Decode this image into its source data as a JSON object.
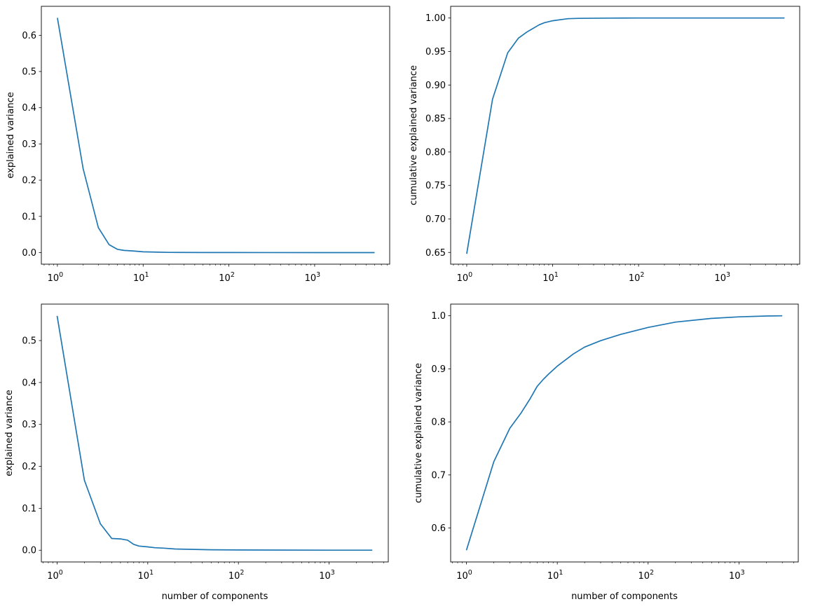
{
  "chart_data": [
    {
      "type": "line",
      "title": "",
      "xlabel": "",
      "ylabel": "explained variance",
      "xscale": "log",
      "xlim": [
        0.65,
        7500
      ],
      "ylim": [
        -0.032,
        0.68
      ],
      "xticks": [
        {
          "base": "10",
          "exp": "0"
        },
        {
          "base": "10",
          "exp": "1"
        },
        {
          "base": "10",
          "exp": "2"
        },
        {
          "base": "10",
          "exp": "3"
        }
      ],
      "yticks": [
        "0.0",
        "0.1",
        "0.2",
        "0.3",
        "0.4",
        "0.5",
        "0.6"
      ],
      "grid": false,
      "color": "#1f77b4",
      "x": [
        1,
        2,
        3,
        4,
        5,
        6,
        7,
        8,
        10,
        15,
        20,
        50,
        100,
        1000,
        5000
      ],
      "y": [
        0.648,
        0.231,
        0.069,
        0.022,
        0.009,
        0.006,
        0.005,
        0.004,
        0.002,
        0.001,
        0.0005,
        0.0002,
        0.0001,
        0.0,
        0.0
      ]
    },
    {
      "type": "line",
      "title": "",
      "xlabel": "",
      "ylabel": "cumulative explained variance",
      "xscale": "log",
      "xlim": [
        0.65,
        7500
      ],
      "ylim": [
        0.6325,
        1.0175
      ],
      "xticks": [
        {
          "base": "10",
          "exp": "0"
        },
        {
          "base": "10",
          "exp": "1"
        },
        {
          "base": "10",
          "exp": "2"
        },
        {
          "base": "10",
          "exp": "3"
        }
      ],
      "yticks": [
        "0.65",
        "0.70",
        "0.75",
        "0.80",
        "0.85",
        "0.90",
        "0.95",
        "1.00"
      ],
      "grid": false,
      "color": "#1f77b4",
      "x": [
        1,
        2,
        3,
        4,
        5,
        6,
        7,
        8,
        10,
        15,
        20,
        50,
        100,
        1000,
        5000
      ],
      "y": [
        0.648,
        0.879,
        0.948,
        0.97,
        0.979,
        0.985,
        0.99,
        0.993,
        0.996,
        0.999,
        0.9995,
        0.9999,
        1.0,
        1.0,
        1.0
      ]
    },
    {
      "type": "line",
      "title": "",
      "xlabel": "number of components",
      "ylabel": "explained variance",
      "xscale": "log",
      "xlim": [
        0.67,
        4500
      ],
      "ylim": [
        -0.028,
        0.587
      ],
      "xticks": [
        {
          "base": "10",
          "exp": "0"
        },
        {
          "base": "10",
          "exp": "1"
        },
        {
          "base": "10",
          "exp": "2"
        },
        {
          "base": "10",
          "exp": "3"
        }
      ],
      "yticks": [
        "0.0",
        "0.1",
        "0.2",
        "0.3",
        "0.4",
        "0.5"
      ],
      "grid": false,
      "color": "#1f77b4",
      "x": [
        1,
        2,
        3,
        4,
        5,
        6,
        7,
        8,
        10,
        12,
        15,
        20,
        30,
        50,
        100,
        1000,
        3000
      ],
      "y": [
        0.559,
        0.167,
        0.063,
        0.028,
        0.027,
        0.024,
        0.014,
        0.01,
        0.008,
        0.006,
        0.005,
        0.003,
        0.002,
        0.001,
        0.0005,
        0.0,
        0.0
      ]
    },
    {
      "type": "line",
      "title": "",
      "xlabel": "number of components",
      "ylabel": "cumulative explained variance",
      "xscale": "log",
      "xlim": [
        0.67,
        4500
      ],
      "ylim": [
        0.536,
        1.022
      ],
      "xticks": [
        {
          "base": "10",
          "exp": "0"
        },
        {
          "base": "10",
          "exp": "1"
        },
        {
          "base": "10",
          "exp": "2"
        },
        {
          "base": "10",
          "exp": "3"
        }
      ],
      "yticks": [
        "0.6",
        "0.7",
        "0.8",
        "0.9",
        "1.0"
      ],
      "grid": false,
      "color": "#1f77b4",
      "x": [
        1,
        2,
        3,
        4,
        5,
        6,
        7,
        8,
        10,
        15,
        20,
        30,
        50,
        100,
        200,
        500,
        1000,
        2000,
        3000
      ],
      "y": [
        0.558,
        0.725,
        0.788,
        0.817,
        0.843,
        0.867,
        0.88,
        0.89,
        0.905,
        0.928,
        0.941,
        0.953,
        0.965,
        0.978,
        0.988,
        0.995,
        0.998,
        0.9995,
        1.0
      ]
    }
  ]
}
